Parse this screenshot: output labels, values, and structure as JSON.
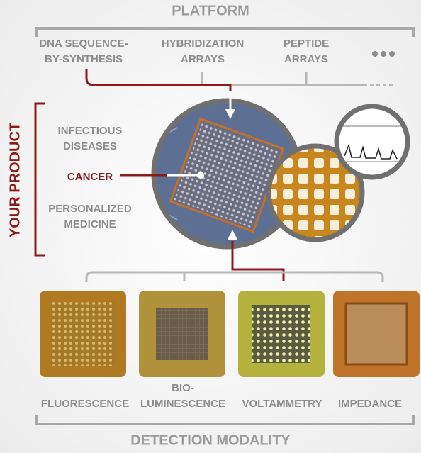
{
  "header": {
    "title": "PLATFORM"
  },
  "platforms": [
    {
      "lines": [
        "DNA SEQUENCE-",
        "BY-SYNTHESIS"
      ]
    },
    {
      "lines": [
        "HYBRIDIZATION",
        "ARRAYS"
      ]
    },
    {
      "lines": [
        "PEPTIDE",
        "ARRAYS"
      ]
    }
  ],
  "product": {
    "title": "YOUR PRODUCT",
    "applications": [
      {
        "lines": [
          "INFECTIOUS",
          "DISEASES"
        ]
      },
      {
        "lines": [
          "CANCER"
        ]
      },
      {
        "lines": [
          "PERSONALIZED",
          "MEDICINE"
        ]
      }
    ]
  },
  "detection": {
    "title": "DETECTION MODALITY",
    "modalities": [
      {
        "lines": [
          "FLUORESCENCE"
        ]
      },
      {
        "lines": [
          "BIO-",
          "LUMINESCENCE"
        ]
      },
      {
        "lines": [
          "VOLTAMMETRY"
        ]
      },
      {
        "lines": [
          "IMPEDANCE"
        ]
      }
    ]
  }
}
